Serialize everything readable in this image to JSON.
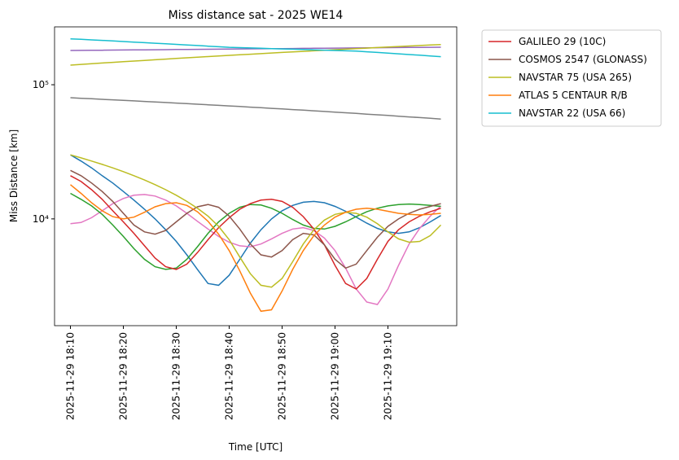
{
  "chart_data": {
    "type": "line",
    "title": "Miss distance sat - 2025 WE14",
    "x_label": "Time [UTC]",
    "y_label": "Miss Distance [km]",
    "ylog": true,
    "legend_position": "outside-upper-right",
    "ylim": [
      1600,
      270000
    ],
    "yticks": [
      {
        "value": 10000,
        "label": "10⁴"
      },
      {
        "value": 100000,
        "label": "10⁵"
      }
    ],
    "xlim": [
      "2025-11-29 18:07",
      "2025-11-29 19:23"
    ],
    "xticks": [
      "2025-11-29 18:10",
      "2025-11-29 18:20",
      "2025-11-29 18:30",
      "2025-11-29 18:40",
      "2025-11-29 18:50",
      "2025-11-29 19:00",
      "2025-11-29 19:10"
    ],
    "x": [
      "2025-11-29 18:10",
      "2025-11-29 18:12",
      "2025-11-29 18:14",
      "2025-11-29 18:16",
      "2025-11-29 18:18",
      "2025-11-29 18:20",
      "2025-11-29 18:22",
      "2025-11-29 18:24",
      "2025-11-29 18:26",
      "2025-11-29 18:28",
      "2025-11-29 18:30",
      "2025-11-29 18:32",
      "2025-11-29 18:34",
      "2025-11-29 18:36",
      "2025-11-29 18:38",
      "2025-11-29 18:40",
      "2025-11-29 18:42",
      "2025-11-29 18:44",
      "2025-11-29 18:46",
      "2025-11-29 18:48",
      "2025-11-29 18:50",
      "2025-11-29 18:52",
      "2025-11-29 18:54",
      "2025-11-29 18:56",
      "2025-11-29 18:58",
      "2025-11-29 19:00",
      "2025-11-29 19:02",
      "2025-11-29 19:04",
      "2025-11-29 19:06",
      "2025-11-29 19:08",
      "2025-11-29 19:10",
      "2025-11-29 19:12",
      "2025-11-29 19:14",
      "2025-11-29 19:16",
      "2025-11-29 19:18",
      "2025-11-29 19:20"
    ],
    "series": [
      {
        "color": "#9467bd",
        "values": [
          180000,
          180300,
          180600,
          180900,
          181200,
          181500,
          181800,
          182100,
          182400,
          182700,
          183000,
          183300,
          183600,
          183900,
          184200,
          184500,
          184800,
          185100,
          185400,
          185700,
          186000,
          186300,
          186600,
          186900,
          187200,
          187500,
          187800,
          188100,
          188400,
          188700,
          189000,
          189300,
          189600,
          189900,
          190200,
          190500
        ]
      },
      {
        "color": "#bcbd22",
        "values": [
          140000,
          141700,
          143400,
          145100,
          146800,
          148500,
          150200,
          151900,
          153600,
          155300,
          157000,
          158700,
          160400,
          162100,
          163800,
          165500,
          167200,
          168900,
          170600,
          172300,
          174000,
          175700,
          177400,
          179100,
          180800,
          182500,
          184200,
          185900,
          187600,
          189300,
          191000,
          192700,
          194400,
          196100,
          197800,
          199500
        ]
      },
      {
        "color": "#7f7f7f",
        "values": [
          80000,
          79300,
          78600,
          77900,
          77200,
          76500,
          75800,
          75100,
          74400,
          73700,
          73000,
          72300,
          71600,
          70900,
          70200,
          69500,
          68800,
          68100,
          67400,
          66700,
          66000,
          65300,
          64600,
          63900,
          63200,
          62500,
          61800,
          61100,
          60400,
          59700,
          59000,
          58300,
          57600,
          56900,
          56200,
          55500
        ]
      },
      {
        "color": "#1f77b4",
        "values": [
          30000,
          27000,
          24000,
          21000,
          18500,
          16000,
          13800,
          11800,
          10000,
          8300,
          6800,
          5400,
          4200,
          3300,
          3200,
          3800,
          5000,
          6600,
          8300,
          10000,
          11500,
          12600,
          13300,
          13500,
          13200,
          12400,
          11400,
          10300,
          9300,
          8500,
          8000,
          7800,
          8000,
          8600,
          9500,
          10600
        ]
      },
      {
        "color": "#e377c2",
        "values": [
          9200,
          9400,
          10200,
          11500,
          13000,
          14200,
          15000,
          15200,
          14800,
          13800,
          12500,
          11000,
          9600,
          8400,
          7400,
          6700,
          6300,
          6200,
          6500,
          7100,
          7800,
          8400,
          8600,
          8200,
          7200,
          5800,
          4300,
          3000,
          2400,
          2300,
          3000,
          4500,
          6500,
          8500,
          10500,
          12500
        ]
      },
      {
        "color": "#2ca02c",
        "values": [
          15500,
          14000,
          12500,
          10800,
          9000,
          7400,
          6000,
          5000,
          4400,
          4200,
          4300,
          5000,
          6200,
          7800,
          9500,
          11000,
          12200,
          12800,
          12700,
          12000,
          11000,
          9900,
          9000,
          8500,
          8400,
          8800,
          9500,
          10400,
          11300,
          12000,
          12500,
          12800,
          12900,
          12800,
          12600,
          12400
        ]
      },
      {
        "name": "GALILEO 29 (10C)",
        "color": "#d62728",
        "values": [
          21000,
          19000,
          16500,
          14000,
          11500,
          9500,
          7800,
          6300,
          5100,
          4400,
          4200,
          4600,
          5600,
          7000,
          8600,
          10200,
          11800,
          13000,
          13800,
          14000,
          13500,
          12200,
          10400,
          8400,
          6400,
          4500,
          3300,
          3000,
          3600,
          5000,
          6800,
          8300,
          9500,
          10500,
          11300,
          12000
        ]
      },
      {
        "name": "COSMOS 2547 (GLONASS)",
        "color": "#8c564b",
        "values": [
          23000,
          21000,
          18500,
          16000,
          13500,
          11000,
          9000,
          8000,
          7700,
          8200,
          9500,
          11000,
          12300,
          12800,
          12200,
          10500,
          8400,
          6500,
          5400,
          5200,
          5800,
          7000,
          7800,
          7600,
          6400,
          5000,
          4300,
          4600,
          5800,
          7300,
          8800,
          10000,
          11000,
          11800,
          12400,
          13000
        ]
      },
      {
        "name": "NAVSTAR 75 (USA 265)",
        "color": "#bcbd22",
        "values": [
          30000,
          28500,
          27000,
          25500,
          24000,
          22500,
          21000,
          19500,
          18000,
          16500,
          15000,
          13500,
          12000,
          10500,
          8800,
          7000,
          5200,
          3900,
          3200,
          3100,
          3600,
          4800,
          6500,
          8300,
          9800,
          10800,
          11200,
          11000,
          10300,
          9200,
          8000,
          7100,
          6700,
          6800,
          7500,
          9000
        ]
      },
      {
        "name": "ATLAS 5 CENTAUR R/B",
        "color": "#ff7f0e",
        "values": [
          18000,
          15500,
          13200,
          11500,
          10400,
          10000,
          10300,
          11200,
          12300,
          13000,
          13200,
          12600,
          11300,
          9600,
          7700,
          5800,
          4100,
          2800,
          2050,
          2100,
          2900,
          4200,
          5800,
          7500,
          9000,
          10300,
          11200,
          11800,
          12000,
          11800,
          11400,
          11000,
          10800,
          10700,
          10800,
          11000
        ]
      },
      {
        "name": "NAVSTAR 22 (USA 66)",
        "color": "#17becf",
        "values": [
          220000,
          218000,
          216000,
          214000,
          212000,
          210000,
          208000,
          206000,
          204000,
          202000,
          200000,
          198000,
          196000,
          194000,
          192000,
          190000,
          189000,
          188000,
          187000,
          186000,
          185000,
          184000,
          183000,
          182000,
          181000,
          180000,
          179000,
          178000,
          176000,
          174000,
          172000,
          170000,
          168000,
          166000,
          164000,
          162000
        ]
      }
    ]
  }
}
